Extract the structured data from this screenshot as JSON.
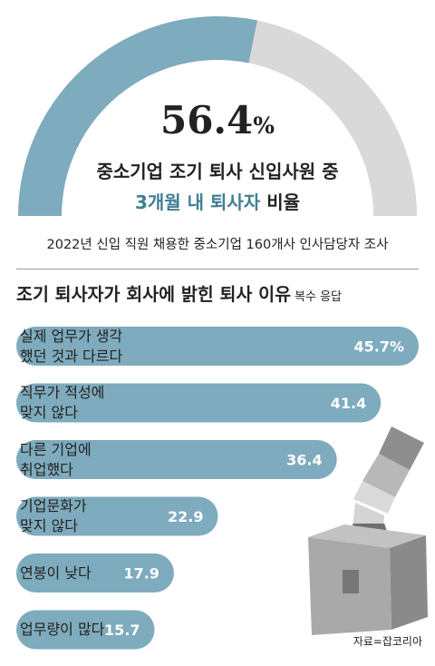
{
  "gauge": {
    "value_number": "56.4",
    "value_unit": "%",
    "value": 56.4,
    "title_line1": "중소기업 조기 퇴사 신입사원 중",
    "title_line2_highlight": "3개월 내 퇴사자",
    "title_line2_rest": " 비율",
    "colors": {
      "fill": "#7eabbd",
      "track": "#d9d9d9",
      "highlight": "#3f7f95"
    }
  },
  "survey_note": "2022년 신입 직원 채용한 중소기업 160개사 인사담당자 조사",
  "reasons": {
    "title": "조기 퇴사자가 회사에 밝힌 퇴사 이유",
    "subtitle": "복수 응답"
  },
  "chart_data": {
    "type": "bar",
    "orientation": "horizontal",
    "categories": [
      "실제 업무가 생각\n했던 것과 다르다",
      "직무가 적성에\n맞지 않다",
      "다른 기업에\n취업했다",
      "기업문화가\n맞지 않다",
      "연봉이 낮다",
      "업무량이 많다"
    ],
    "values": [
      45.7,
      41.4,
      36.4,
      22.9,
      17.9,
      15.7
    ],
    "value_labels": [
      "45.7%",
      "41.4",
      "36.4",
      "22.9",
      "17.9",
      "15.7"
    ],
    "bar_color": "#7eabbd",
    "label_color": "#ffffff"
  },
  "illustration": {
    "icon": "briefcase-hand-icon"
  },
  "source": "자료=잡코리아"
}
